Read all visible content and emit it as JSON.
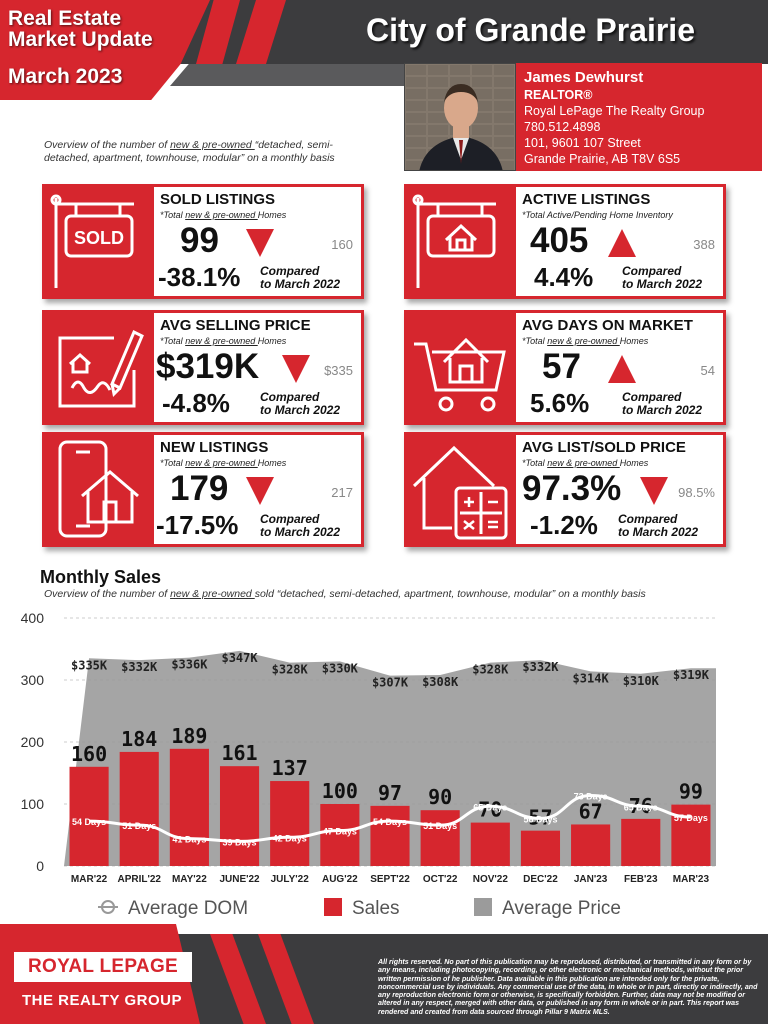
{
  "header": {
    "title_line1": "Real Estate",
    "title_line2": "Market Update",
    "date": "March 2023",
    "city": "City of Grande Prairie"
  },
  "agent": {
    "name": "James Dewhurst",
    "role": "REALTOR®",
    "company": "Royal LePage The Realty Group",
    "phone": "780.512.4898",
    "address1": "101, 9601 107 Street",
    "address2": "Grande Prairie, AB T8V 6S5"
  },
  "overview": {
    "pre": "Overview of the number of ",
    "underlined": "new & pre-owned ",
    "post": "“detached, semi-detached, apartment, townhouse, modular” on a monthly basis"
  },
  "cards": {
    "sold": {
      "title": "SOLD LISTINGS",
      "sub_pre": "*Total ",
      "sub_u": "new & pre-owned ",
      "sub_post": "Homes",
      "value": "99",
      "prev": "160",
      "pct": "-38.1%",
      "cmp1": "Compared",
      "cmp2": "to March 2022",
      "direction": "down",
      "icon": "sold-sign-icon"
    },
    "active": {
      "title": "ACTIVE LISTINGS",
      "sub_pre": "*Total Active/Pending Home Inventory",
      "sub_u": "",
      "sub_post": "",
      "value": "405",
      "prev": "388",
      "pct": "4.4%",
      "cmp1": "Compared",
      "cmp2": "to March 2022",
      "direction": "up",
      "icon": "house-sign-icon"
    },
    "price": {
      "title": "AVG SELLING PRICE",
      "sub_pre": "*Total ",
      "sub_u": "new & pre-owned ",
      "sub_post": "Homes",
      "value": "$319K",
      "prev": "$335",
      "pct": "-4.8%",
      "cmp1": "Compared",
      "cmp2": "to March 2022",
      "direction": "down",
      "icon": "contract-signing-icon"
    },
    "dom": {
      "title": "AVG DAYS ON MARKET",
      "sub_pre": "*Total ",
      "sub_u": "new & pre-owned ",
      "sub_post": "Homes",
      "value": "57",
      "prev": "54",
      "pct": "5.6%",
      "cmp1": "Compared",
      "cmp2": "to March 2022",
      "direction": "up",
      "icon": "house-cart-icon"
    },
    "new": {
      "title": "NEW LISTINGS",
      "sub_pre": "*Total ",
      "sub_u": "new & pre-owned ",
      "sub_post": "Homes",
      "value": "179",
      "prev": "217",
      "pct": "-17.5%",
      "cmp1": "Compared",
      "cmp2": "to March 2022",
      "direction": "down",
      "icon": "phone-house-icon"
    },
    "ratio": {
      "title": "AVG LIST/SOLD PRICE",
      "sub_pre": "*Total ",
      "sub_u": "new & pre-owned ",
      "sub_post": "Homes",
      "value": "97.3%",
      "prev": "98.5%",
      "pct": "-1.2%",
      "cmp1": "Compared",
      "cmp2": "to March 2022",
      "direction": "down",
      "icon": "house-calculator-icon"
    }
  },
  "monthly": {
    "title": "Monthly Sales",
    "sub_pre": "Overview of the number of ",
    "sub_u": "new & pre-owned ",
    "sub_post": "sold “detached, semi-detached, apartment, townhouse, modular” on a monthly basis"
  },
  "chart_data": {
    "type": "bar",
    "categories": [
      "MAR'22",
      "APRIL'22",
      "MAY'22",
      "JUNE'22",
      "JULY'22",
      "AUG'22",
      "SEPT'22",
      "OCT'22",
      "NOV'22",
      "DEC'22",
      "JAN'23",
      "FEB'23",
      "MAR'23"
    ],
    "ylim": [
      0,
      400
    ],
    "yticks": [
      0,
      100,
      200,
      300,
      400
    ],
    "series": [
      {
        "name": "Sales",
        "kind": "bar",
        "color": "#d6262e",
        "values": [
          160,
          184,
          189,
          161,
          137,
          100,
          97,
          90,
          70,
          57,
          67,
          76,
          99
        ]
      },
      {
        "name": "Average Price",
        "kind": "area",
        "color": "#9b9b9b",
        "values": [
          335,
          332,
          336,
          347,
          328,
          330,
          307,
          308,
          328,
          332,
          314,
          310,
          319
        ],
        "labels": [
          "$335K",
          "$332K",
          "$336K",
          "$347K",
          "$328K",
          "$330K",
          "$307K",
          "$308K",
          "$328K",
          "$332K",
          "$314K",
          "$310K",
          "$319K"
        ]
      },
      {
        "name": "Average DOM",
        "kind": "line",
        "color": "#ffffff",
        "values": [
          54,
          51,
          41,
          39,
          42,
          47,
          54,
          51,
          65,
          56,
          73,
          65,
          57
        ],
        "labels": [
          "54 Days",
          "51 Days",
          "41 Days",
          "39 Days",
          "42 Days",
          "47 Days",
          "54 Days",
          "51 Days",
          "65 Days",
          "56 Days",
          "73 Days",
          "65 Days",
          "57 Days"
        ]
      }
    ],
    "grid": true,
    "legend": "bottom"
  },
  "footer": {
    "logo": "ROYAL LEPAGE",
    "logo_sub": "THE REALTY GROUP",
    "legal": "All rights reserved. No part of this publication may be reproduced, distributed, or transmitted in any form or by any means, including photocopying, recording, or other electronic or mechanical methods, without the prior written permission of he publisher. Data available in this publication are intended only for the private, noncommercial use by individuals. Any commercial use of the data, in whole or in part, directly or indirectly, and any reproduction electronic form or otherwise, is specifically forbidden. Further, data may not be modified or altered in any respect, merged with other data, or published in any form in whole or in part. This report was rendered and created from data sourced through Pillar 9 Matrix MLS."
  },
  "colors": {
    "accent": "#d6262e",
    "dark": "#3c3c3e",
    "grey": "#9b9b9b"
  }
}
